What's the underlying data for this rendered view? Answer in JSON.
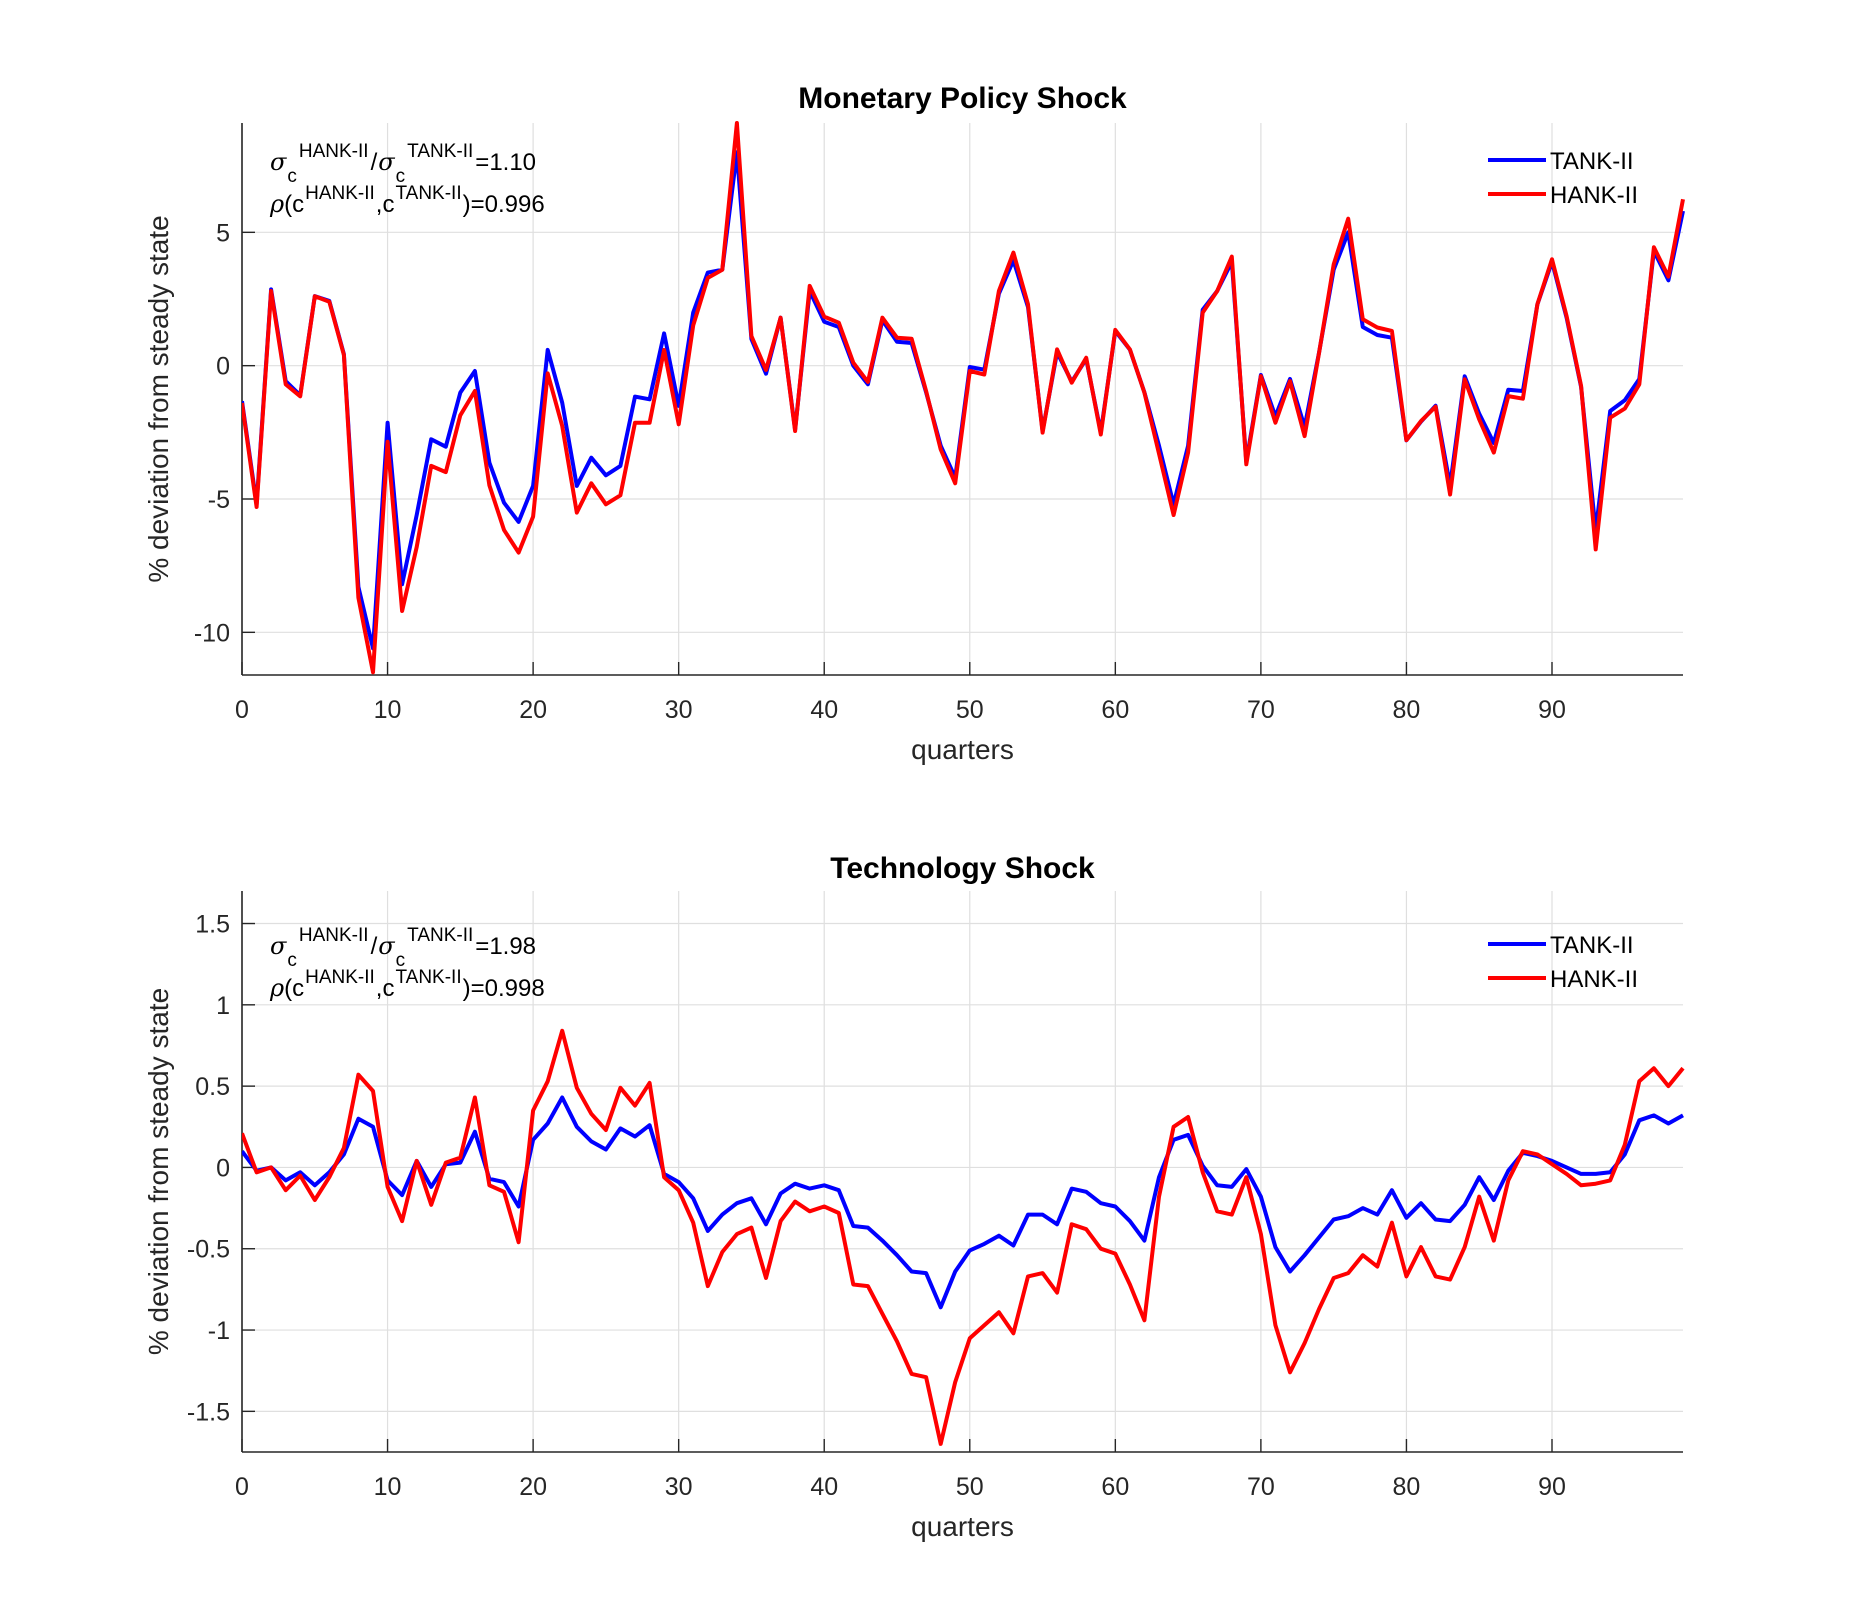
{
  "chart_data": [
    {
      "type": "line",
      "title": "Monetary Policy Shock",
      "xlabel": "quarters",
      "ylabel": "% deviation from steady state",
      "xlim": [
        0,
        99
      ],
      "ylim": [
        -11.6,
        9.1
      ],
      "xticks": [
        0,
        10,
        20,
        30,
        40,
        50,
        60,
        70,
        80,
        90
      ],
      "yticks": [
        -10,
        -5,
        0,
        5
      ],
      "grid": true,
      "legend_position": "top-right",
      "annotation": {
        "ratio_label_sym": "σ",
        "ratio_sub": "c",
        "ratio_sup_num": "HANK-II",
        "ratio_sup_den": "TANK-II",
        "ratio_value": "=1.10",
        "corr_sym": "ρ",
        "corr_sup_a": "HANK-II",
        "corr_sup_b": "TANK-II",
        "corr_value": ")=0.996"
      },
      "x": [
        0,
        1,
        2,
        3,
        4,
        5,
        6,
        7,
        8,
        9,
        10,
        11,
        12,
        13,
        14,
        15,
        16,
        17,
        18,
        19,
        20,
        21,
        22,
        23,
        24,
        25,
        26,
        27,
        28,
        29,
        30,
        31,
        32,
        33,
        34,
        35,
        36,
        37,
        38,
        39,
        40,
        41,
        42,
        43,
        44,
        45,
        46,
        47,
        48,
        49,
        50,
        51,
        52,
        53,
        54,
        55,
        56,
        57,
        58,
        59,
        60,
        61,
        62,
        63,
        64,
        65,
        66,
        67,
        68,
        69,
        70,
        71,
        72,
        73,
        74,
        75,
        76,
        77,
        78,
        79,
        80,
        81,
        82,
        83,
        84,
        85,
        86,
        87,
        88,
        89,
        90,
        91,
        92,
        93,
        94,
        95,
        96,
        97,
        98,
        99
      ],
      "series": [
        {
          "name": "TANK-II",
          "color": "#0000ff",
          "values": [
            -1.33,
            -5.2,
            2.86,
            -0.58,
            -1.11,
            2.61,
            2.43,
            0.43,
            -8.3,
            -10.6,
            -2.14,
            -8.2,
            -5.6,
            -2.76,
            -3.04,
            -1.01,
            -0.2,
            -3.64,
            -5.14,
            -5.86,
            -4.51,
            0.59,
            -1.39,
            -4.51,
            -3.45,
            -4.11,
            -3.76,
            -1.16,
            -1.26,
            1.21,
            -1.51,
            1.99,
            3.49,
            3.6,
            8.0,
            1.0,
            -0.3,
            1.8,
            -2.4,
            2.8,
            1.65,
            1.45,
            0.0,
            -0.7,
            1.7,
            0.9,
            0.85,
            -1.0,
            -3.0,
            -4.2,
            -0.05,
            -0.15,
            2.7,
            3.95,
            2.2,
            -2.45,
            0.5,
            -0.6,
            0.25,
            -2.5,
            1.3,
            0.6,
            -1.0,
            -3.0,
            -5.2,
            -3.0,
            2.1,
            2.8,
            3.9,
            -3.6,
            -0.35,
            -1.9,
            -0.5,
            -2.3,
            0.5,
            3.6,
            5.0,
            1.45,
            1.15,
            1.05,
            -2.8,
            -2.1,
            -1.5,
            -4.5,
            -0.4,
            -1.8,
            -2.9,
            -0.9,
            -0.95,
            2.3,
            3.9,
            1.8,
            -0.8,
            -6.2,
            -1.7,
            -1.3,
            -0.5,
            4.3,
            3.2,
            5.8
          ]
        },
        {
          "name": "HANK-II",
          "color": "#ff0000",
          "values": [
            -1.4,
            -5.3,
            2.8,
            -0.7,
            -1.15,
            2.6,
            2.4,
            0.4,
            -8.7,
            -11.5,
            -2.85,
            -9.2,
            -6.8,
            -3.76,
            -3.99,
            -1.86,
            -0.95,
            -4.49,
            -6.16,
            -7.01,
            -5.66,
            -0.29,
            -2.26,
            -5.51,
            -4.41,
            -5.2,
            -4.86,
            -2.14,
            -2.14,
            0.59,
            -2.2,
            1.51,
            3.29,
            3.6,
            9.1,
            1.11,
            -0.16,
            1.8,
            -2.45,
            2.99,
            1.84,
            1.61,
            0.11,
            -0.61,
            1.8,
            1.05,
            1.01,
            -0.95,
            -3.14,
            -4.41,
            -0.2,
            -0.33,
            2.8,
            4.24,
            2.3,
            -2.51,
            0.61,
            -0.64,
            0.3,
            -2.58,
            1.34,
            0.61,
            -1.01,
            -3.3,
            -5.6,
            -3.26,
            1.99,
            2.8,
            4.09,
            -3.7,
            -0.39,
            -2.14,
            -0.58,
            -2.64,
            0.49,
            3.8,
            5.51,
            1.74,
            1.43,
            1.3,
            -2.79,
            -2.08,
            -1.54,
            -4.83,
            -0.51,
            -2.01,
            -3.26,
            -1.14,
            -1.24,
            2.3,
            3.99,
            1.86,
            -0.76,
            -6.89,
            -1.95,
            -1.61,
            -0.7,
            4.44,
            3.34,
            6.24
          ]
        }
      ]
    },
    {
      "type": "line",
      "title": "Technology Shock",
      "xlabel": "quarters",
      "ylabel": "% deviation from steady state",
      "xlim": [
        0,
        99
      ],
      "ylim": [
        -1.75,
        1.7
      ],
      "xticks": [
        0,
        10,
        20,
        30,
        40,
        50,
        60,
        70,
        80,
        90
      ],
      "yticks": [
        -1.5,
        -1,
        -0.5,
        0,
        0.5,
        1,
        1.5
      ],
      "grid": true,
      "legend_position": "top-right",
      "annotation": {
        "ratio_label_sym": "σ",
        "ratio_sub": "c",
        "ratio_sup_num": "HANK-II",
        "ratio_sup_den": "TANK-II",
        "ratio_value": "=1.98",
        "corr_sym": "ρ",
        "corr_sup_a": "HANK-II",
        "corr_sup_b": "TANK-II",
        "corr_value": ")=0.998"
      },
      "x": [
        0,
        1,
        2,
        3,
        4,
        5,
        6,
        7,
        8,
        9,
        10,
        11,
        12,
        13,
        14,
        15,
        16,
        17,
        18,
        19,
        20,
        21,
        22,
        23,
        24,
        25,
        26,
        27,
        28,
        29,
        30,
        31,
        32,
        33,
        34,
        35,
        36,
        37,
        38,
        39,
        40,
        41,
        42,
        43,
        44,
        45,
        46,
        47,
        48,
        49,
        50,
        51,
        52,
        53,
        54,
        55,
        56,
        57,
        58,
        59,
        60,
        61,
        62,
        63,
        64,
        65,
        66,
        67,
        68,
        69,
        70,
        71,
        72,
        73,
        74,
        75,
        76,
        77,
        78,
        79,
        80,
        81,
        82,
        83,
        84,
        85,
        86,
        87,
        88,
        89,
        90,
        91,
        92,
        93,
        94,
        95,
        96,
        97,
        98,
        99
      ],
      "series": [
        {
          "name": "TANK-II",
          "color": "#0000ff",
          "values": [
            0.1,
            -0.02,
            0.0,
            -0.08,
            -0.03,
            -0.11,
            -0.03,
            0.08,
            0.3,
            0.25,
            -0.08,
            -0.17,
            0.04,
            -0.12,
            0.02,
            0.03,
            0.22,
            -0.07,
            -0.09,
            -0.24,
            0.17,
            0.27,
            0.43,
            0.25,
            0.16,
            0.11,
            0.24,
            0.19,
            0.26,
            -0.04,
            -0.09,
            -0.19,
            -0.39,
            -0.29,
            -0.22,
            -0.19,
            -0.35,
            -0.16,
            -0.1,
            -0.13,
            -0.11,
            -0.14,
            -0.36,
            -0.37,
            -0.45,
            -0.54,
            -0.64,
            -0.65,
            -0.86,
            -0.64,
            -0.51,
            -0.47,
            -0.42,
            -0.48,
            -0.29,
            -0.29,
            -0.35,
            -0.13,
            -0.15,
            -0.22,
            -0.24,
            -0.33,
            -0.45,
            -0.06,
            0.17,
            0.2,
            0.01,
            -0.11,
            -0.12,
            -0.01,
            -0.18,
            -0.49,
            -0.64,
            -0.54,
            -0.43,
            -0.32,
            -0.3,
            -0.25,
            -0.29,
            -0.14,
            -0.31,
            -0.22,
            -0.32,
            -0.33,
            -0.23,
            -0.06,
            -0.2,
            -0.02,
            0.09,
            0.07,
            0.04,
            0.0,
            -0.04,
            -0.04,
            -0.03,
            0.08,
            0.29,
            0.32,
            0.27,
            0.32
          ]
        },
        {
          "name": "HANK-II",
          "color": "#ff0000",
          "values": [
            0.21,
            -0.03,
            0.0,
            -0.14,
            -0.05,
            -0.2,
            -0.06,
            0.12,
            0.57,
            0.47,
            -0.12,
            -0.33,
            0.04,
            -0.23,
            0.03,
            0.06,
            0.43,
            -0.11,
            -0.15,
            -0.46,
            0.35,
            0.53,
            0.84,
            0.49,
            0.33,
            0.23,
            0.49,
            0.38,
            0.52,
            -0.06,
            -0.14,
            -0.34,
            -0.73,
            -0.52,
            -0.41,
            -0.37,
            -0.68,
            -0.33,
            -0.21,
            -0.27,
            -0.24,
            -0.28,
            -0.72,
            -0.73,
            -0.9,
            -1.07,
            -1.27,
            -1.29,
            -1.7,
            -1.32,
            -1.05,
            -0.97,
            -0.89,
            -1.02,
            -0.67,
            -0.65,
            -0.77,
            -0.35,
            -0.38,
            -0.5,
            -0.53,
            -0.72,
            -0.94,
            -0.18,
            0.25,
            0.31,
            -0.03,
            -0.27,
            -0.29,
            -0.06,
            -0.41,
            -0.97,
            -1.26,
            -1.08,
            -0.87,
            -0.68,
            -0.65,
            -0.54,
            -0.61,
            -0.34,
            -0.67,
            -0.49,
            -0.67,
            -0.69,
            -0.49,
            -0.18,
            -0.45,
            -0.08,
            0.1,
            0.08,
            0.02,
            -0.04,
            -0.11,
            -0.1,
            -0.08,
            0.14,
            0.53,
            0.61,
            0.5,
            0.61
          ]
        }
      ]
    }
  ]
}
